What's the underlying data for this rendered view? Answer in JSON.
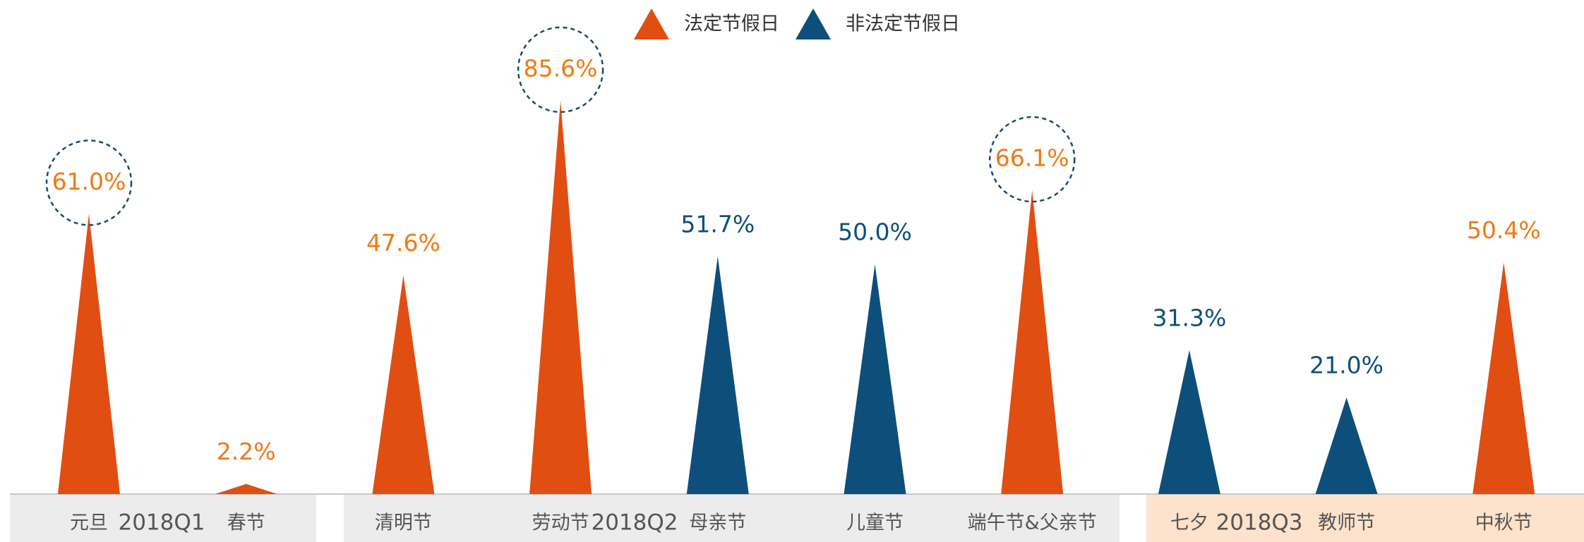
{
  "chart_data": {
    "type": "triangle",
    "categories": [
      "元旦",
      "春节",
      "清明节",
      "劳动节",
      "母亲节",
      "儿童节",
      "端午节&父亲节",
      "七夕",
      "教师节",
      "中秋节"
    ],
    "series": [
      {
        "name": "法定节假日",
        "color": "#e04e12",
        "label_color": "#ee7a14",
        "values": [
          61.0,
          2.2,
          47.6,
          85.6,
          null,
          null,
          66.1,
          null,
          null,
          50.4
        ],
        "value_labels": [
          "61.0%",
          "2.2%",
          "47.6%",
          "85.6%",
          null,
          null,
          "66.1%",
          null,
          null,
          "50.4%"
        ]
      },
      {
        "name": "非法定节假日",
        "color": "#0d4f7a",
        "label_color": "#0d4f7a",
        "values": [
          null,
          null,
          null,
          null,
          51.7,
          50.0,
          null,
          31.3,
          21.0,
          null
        ],
        "value_labels": [
          null,
          null,
          null,
          null,
          "51.7%",
          "50.0%",
          null,
          "31.3%",
          "21.0%",
          null
        ]
      }
    ],
    "groups": [
      {
        "name": "2018Q1",
        "color": "#ececec"
      },
      {
        "name": "2018Q2",
        "color": "#ececec"
      },
      {
        "name": "2018Q3",
        "color": "#fde3cc"
      }
    ],
    "highlighted": [
      0,
      3,
      6
    ],
    "legend": "top"
  }
}
